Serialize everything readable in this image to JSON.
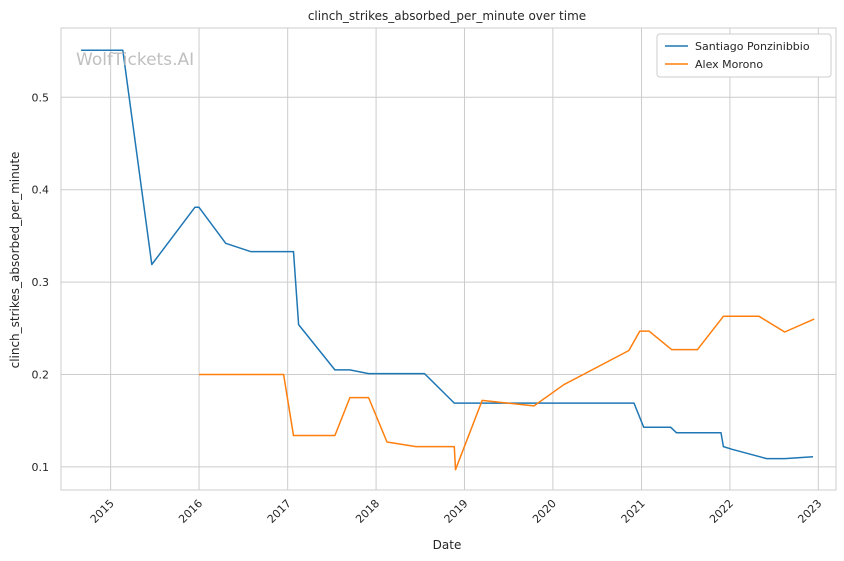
{
  "chart_data": {
    "type": "line",
    "title": "clinch_strikes_absorbed_per_minute over time",
    "xlabel": "Date",
    "ylabel": "clinch_strikes_absorbed_per_minute",
    "watermark": "WolfTickets.AI",
    "x_ticks": [
      "2015",
      "2016",
      "2017",
      "2018",
      "2019",
      "2020",
      "2021",
      "2022",
      "2023"
    ],
    "y_ticks": [
      "0.1",
      "0.2",
      "0.3",
      "0.4",
      "0.5"
    ],
    "xlim": [
      "2014-06-10",
      "2023-03-15"
    ],
    "ylim": [
      0.075,
      0.575
    ],
    "grid": true,
    "legend_position": "top-right",
    "series": [
      {
        "name": "Santiago Ponzinibbio",
        "color": "#1f77b4",
        "points": [
          [
            "2014-09-01",
            0.551
          ],
          [
            "2015-02-20",
            0.551
          ],
          [
            "2015-06-20",
            0.319
          ],
          [
            "2015-12-15",
            0.381
          ],
          [
            "2016-01-01",
            0.381
          ],
          [
            "2016-04-20",
            0.342
          ],
          [
            "2016-08-01",
            0.333
          ],
          [
            "2017-01-25",
            0.333
          ],
          [
            "2017-02-15",
            0.254
          ],
          [
            "2017-07-15",
            0.205
          ],
          [
            "2017-09-15",
            0.205
          ],
          [
            "2017-12-01",
            0.201
          ],
          [
            "2018-07-20",
            0.201
          ],
          [
            "2018-11-20",
            0.169
          ],
          [
            "2020-12-01",
            0.169
          ],
          [
            "2021-01-10",
            0.143
          ],
          [
            "2021-05-01",
            0.143
          ],
          [
            "2021-05-25",
            0.137
          ],
          [
            "2021-11-25",
            0.137
          ],
          [
            "2021-12-05",
            0.122
          ],
          [
            "2022-01-10",
            0.119
          ],
          [
            "2022-06-01",
            0.109
          ],
          [
            "2022-08-15",
            0.109
          ],
          [
            "2022-12-10",
            0.111
          ]
        ]
      },
      {
        "name": "Alex Morono",
        "color": "#ff7f0e",
        "points": [
          [
            "2016-01-01",
            0.2
          ],
          [
            "2016-12-15",
            0.2
          ],
          [
            "2017-01-25",
            0.134
          ],
          [
            "2017-07-15",
            0.134
          ],
          [
            "2017-09-15",
            0.175
          ],
          [
            "2017-12-01",
            0.175
          ],
          [
            "2018-02-15",
            0.127
          ],
          [
            "2018-06-15",
            0.122
          ],
          [
            "2018-11-20",
            0.122
          ],
          [
            "2018-11-25",
            0.097
          ],
          [
            "2019-03-15",
            0.172
          ],
          [
            "2019-10-15",
            0.166
          ],
          [
            "2020-02-15",
            0.189
          ],
          [
            "2020-11-10",
            0.226
          ],
          [
            "2020-12-25",
            0.247
          ],
          [
            "2021-02-01",
            0.247
          ],
          [
            "2021-05-05",
            0.227
          ],
          [
            "2021-08-20",
            0.227
          ],
          [
            "2021-12-05",
            0.263
          ],
          [
            "2022-05-01",
            0.263
          ],
          [
            "2022-08-15",
            0.246
          ],
          [
            "2022-12-15",
            0.26
          ]
        ]
      }
    ]
  }
}
